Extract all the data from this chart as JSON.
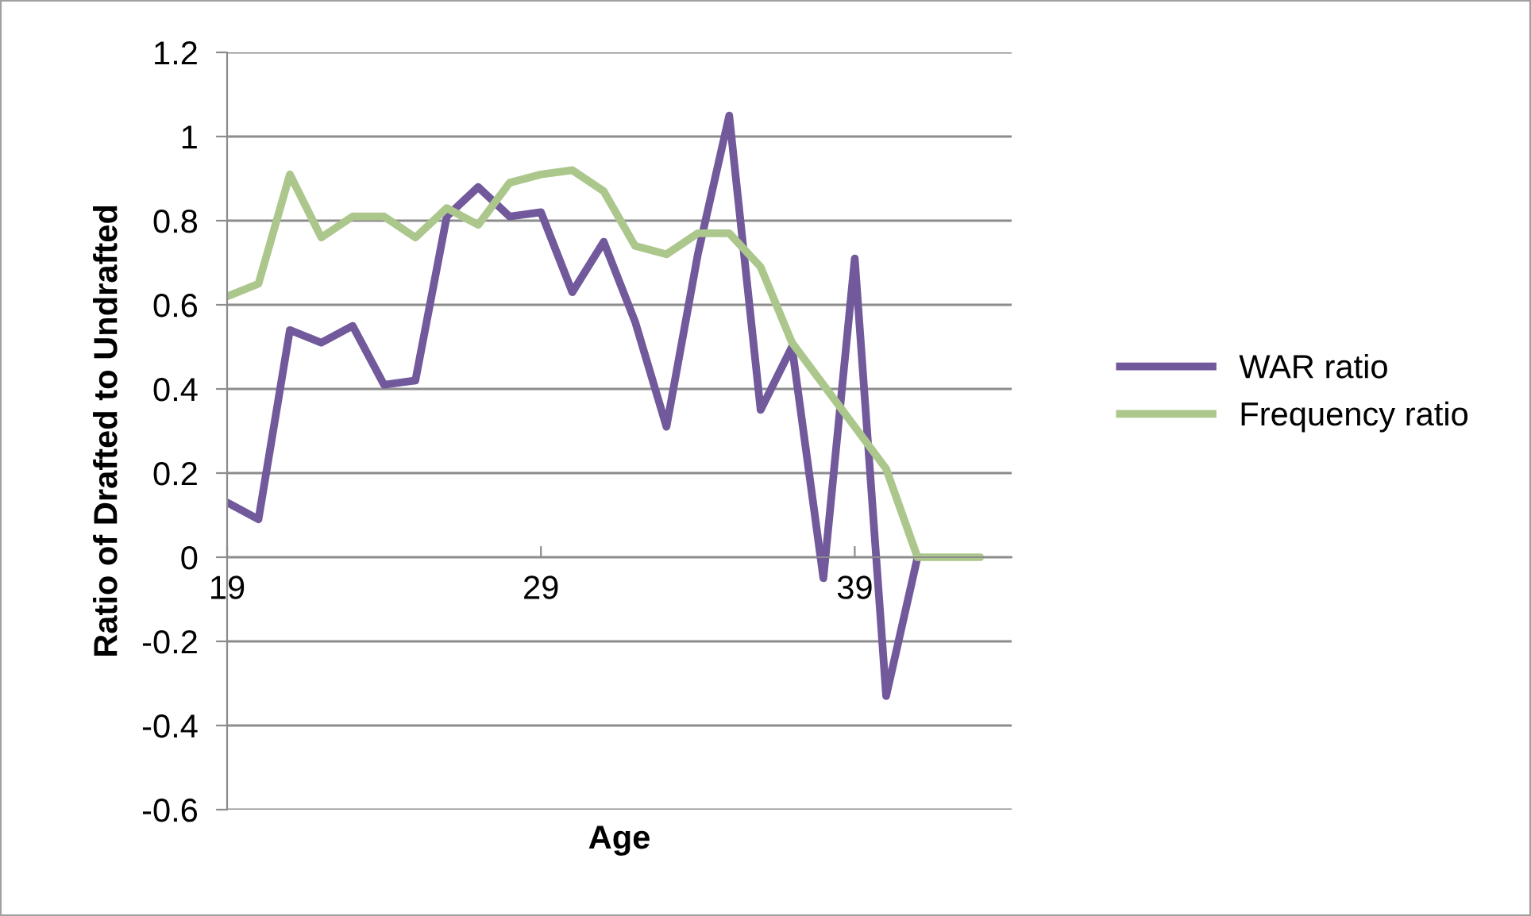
{
  "chart_data": {
    "type": "line",
    "xlabel": "Age",
    "ylabel": "Ratio of Drafted to Undrafted",
    "xlim": [
      19,
      44
    ],
    "xticks": [
      19,
      29,
      39
    ],
    "ylim": [
      -0.6,
      1.2
    ],
    "yticks": [
      -0.6,
      -0.4,
      -0.2,
      0,
      0.2,
      0.4,
      0.6,
      0.8,
      1,
      1.2
    ],
    "grid": "y",
    "legend": "right",
    "marker": "none",
    "line_style": "solid",
    "series": [
      {
        "name": "WAR ratio",
        "color": "#71599b",
        "x": [
          19,
          20,
          21,
          22,
          23,
          24,
          25,
          26,
          27,
          28,
          29,
          30,
          31,
          32,
          33,
          34,
          35,
          36,
          37,
          38,
          39,
          40,
          41
        ],
        "values": [
          0.13,
          0.09,
          0.54,
          0.51,
          0.55,
          0.41,
          0.42,
          0.81,
          0.88,
          0.81,
          0.82,
          0.63,
          0.75,
          0.56,
          0.31,
          0.72,
          1.05,
          0.35,
          0.5,
          -0.05,
          0.71,
          -0.33,
          0
        ]
      },
      {
        "name": "Frequency ratio",
        "color": "#abc78c",
        "x": [
          19,
          20,
          21,
          22,
          23,
          24,
          25,
          26,
          27,
          28,
          29,
          30,
          31,
          32,
          33,
          34,
          35,
          36,
          37,
          38,
          39,
          40,
          41,
          42,
          43
        ],
        "values": [
          0.62,
          0.65,
          0.91,
          0.76,
          0.81,
          0.81,
          0.76,
          0.83,
          0.79,
          0.89,
          0.91,
          0.92,
          0.87,
          0.74,
          0.72,
          0.77,
          0.77,
          0.69,
          0.51,
          0.41,
          0.31,
          0.21,
          0,
          0,
          0
        ]
      }
    ]
  }
}
